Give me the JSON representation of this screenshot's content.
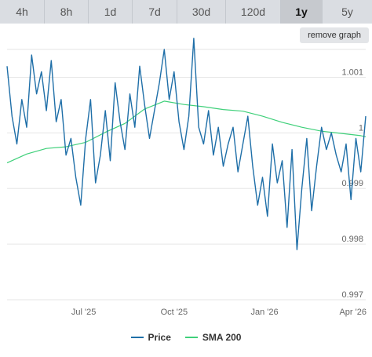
{
  "tabs": [
    {
      "label": "4h",
      "active": false
    },
    {
      "label": "8h",
      "active": false
    },
    {
      "label": "1d",
      "active": false
    },
    {
      "label": "7d",
      "active": false
    },
    {
      "label": "30d",
      "active": false
    },
    {
      "label": "120d",
      "active": false
    },
    {
      "label": "1y",
      "active": true
    },
    {
      "label": "5y",
      "active": false
    }
  ],
  "remove_graph_label": "remove graph",
  "colors": {
    "price": "#1f6fa8",
    "sma": "#3fd07a",
    "grid": "#e6e6e6"
  },
  "chart_data": {
    "type": "line",
    "title": "",
    "xlabel": "",
    "ylabel": "",
    "ylim": [
      0.997,
      1.0015
    ],
    "y_ticks": [
      "1.001",
      "1",
      "0.999",
      "0.998",
      "0.997"
    ],
    "y_tick_values": [
      1.001,
      1.0,
      0.999,
      0.998,
      0.997
    ],
    "x_ticks": [
      "Jul '25",
      "Oct '25",
      "Jan '26",
      "Apr '26"
    ],
    "x_tick_values": [
      "2025-07-01",
      "2025-10-01",
      "2026-01-01",
      "2026-04-01"
    ],
    "x_range": [
      "2025-04-14",
      "2026-04-14"
    ],
    "grid": true,
    "legend": "bottom",
    "series": [
      {
        "name": "Price",
        "x": [
          "2025-04-14",
          "2025-04-19",
          "2025-04-24",
          "2025-04-29",
          "2025-05-04",
          "2025-05-09",
          "2025-05-14",
          "2025-05-19",
          "2025-05-24",
          "2025-05-29",
          "2025-06-03",
          "2025-06-08",
          "2025-06-13",
          "2025-06-18",
          "2025-06-23",
          "2025-06-28",
          "2025-07-03",
          "2025-07-08",
          "2025-07-13",
          "2025-07-18",
          "2025-07-23",
          "2025-07-28",
          "2025-08-02",
          "2025-08-07",
          "2025-08-12",
          "2025-08-17",
          "2025-08-22",
          "2025-08-27",
          "2025-09-01",
          "2025-09-06",
          "2025-09-11",
          "2025-09-16",
          "2025-09-21",
          "2025-09-26",
          "2025-10-01",
          "2025-10-06",
          "2025-10-11",
          "2025-10-16",
          "2025-10-21",
          "2025-10-26",
          "2025-10-31",
          "2025-11-05",
          "2025-11-10",
          "2025-11-15",
          "2025-11-20",
          "2025-11-25",
          "2025-11-30",
          "2025-12-05",
          "2025-12-10",
          "2025-12-15",
          "2025-12-20",
          "2025-12-25",
          "2025-12-30",
          "2026-01-04",
          "2026-01-09",
          "2026-01-14",
          "2026-01-19",
          "2026-01-24",
          "2026-01-29",
          "2026-02-03",
          "2026-02-08",
          "2026-02-13",
          "2026-02-18",
          "2026-02-23",
          "2026-02-28",
          "2026-03-05",
          "2026-03-10",
          "2026-03-15",
          "2026-03-20",
          "2026-03-25",
          "2026-03-30",
          "2026-04-04",
          "2026-04-09",
          "2026-04-14"
        ],
        "values": [
          1.0012,
          1.0003,
          0.9998,
          1.0006,
          1.0001,
          1.0014,
          1.0007,
          1.0011,
          1.0004,
          1.0013,
          1.0002,
          1.0006,
          0.9996,
          0.9999,
          0.9992,
          0.9987,
          0.9999,
          1.0006,
          0.9991,
          0.9996,
          1.0004,
          0.9995,
          1.0009,
          1.0002,
          0.9997,
          1.0007,
          1.0001,
          1.0012,
          1.0005,
          0.9999,
          1.0004,
          1.0009,
          1.0015,
          1.0006,
          1.0011,
          1.0002,
          0.9997,
          1.0003,
          1.0017,
          1.0001,
          0.9998,
          1.0004,
          0.9996,
          1.0001,
          0.9994,
          0.9998,
          1.0001,
          0.9993,
          0.9998,
          1.0003,
          0.9994,
          0.9987,
          0.9992,
          0.9985,
          0.9998,
          0.9991,
          0.9995,
          0.9983,
          0.9997,
          0.9979,
          0.999,
          0.9999,
          0.9986,
          0.9994,
          1.0001,
          0.9997,
          1.0,
          0.9996,
          0.9993,
          0.9998,
          0.9988,
          0.9999,
          0.9993,
          1.0003
        ]
      },
      {
        "name": "SMA 200",
        "x": [
          "2025-04-14",
          "2025-05-04",
          "2025-05-24",
          "2025-06-13",
          "2025-07-03",
          "2025-07-23",
          "2025-08-12",
          "2025-09-01",
          "2025-09-21",
          "2025-10-11",
          "2025-10-31",
          "2025-11-20",
          "2025-12-10",
          "2025-12-30",
          "2026-01-19",
          "2026-02-08",
          "2026-02-28",
          "2026-03-20",
          "2026-04-09",
          "2026-04-14"
        ],
        "values": [
          0.99946,
          0.99962,
          0.99972,
          0.99975,
          0.99983,
          1.00001,
          1.00017,
          1.00043,
          1.00057,
          1.00051,
          1.00047,
          1.00042,
          1.00039,
          1.0003,
          1.00019,
          1.0001,
          1.00003,
          0.99999,
          0.99995,
          0.99993
        ]
      }
    ]
  },
  "legend": {
    "price_label": "Price",
    "sma_label": "SMA 200"
  }
}
